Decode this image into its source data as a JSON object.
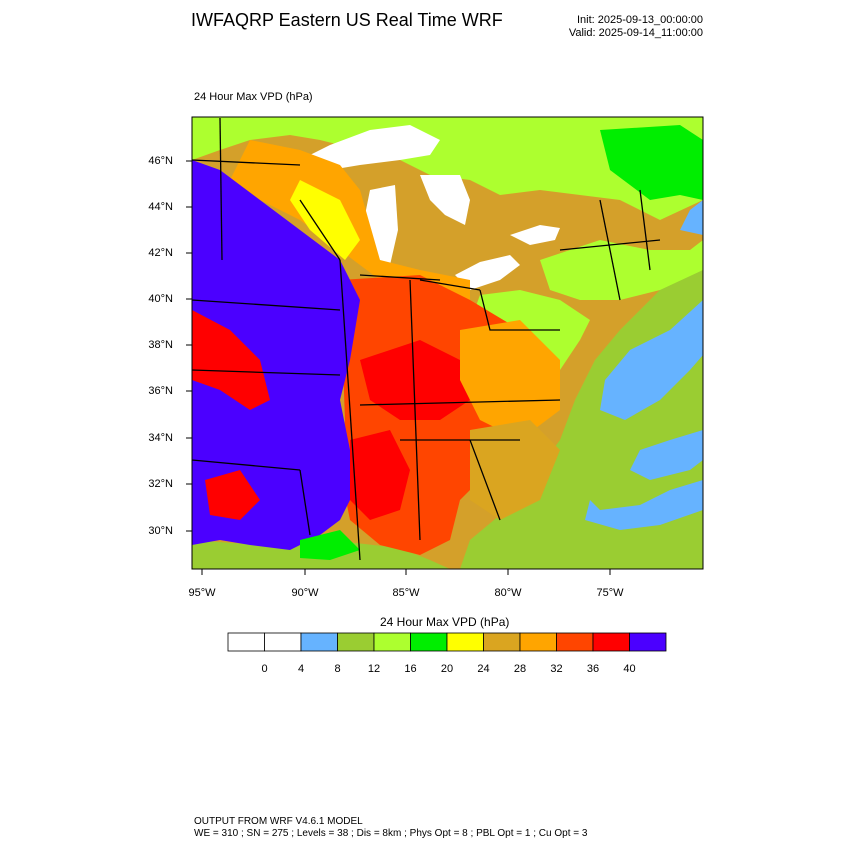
{
  "header": {
    "title": "IWFAQRP Eastern US Real Time WRF",
    "init": "Init: 2025-09-13_00:00:00",
    "valid": "Valid: 2025-09-14_11:00:00"
  },
  "plot": {
    "field_label": "24 Hour Max VPD   (hPa)",
    "lat_labels": [
      "46°N",
      "44°N",
      "42°N",
      "40°N",
      "38°N",
      "36°N",
      "34°N",
      "32°N",
      "30°N"
    ],
    "lon_labels": [
      "95°W",
      "90°W",
      "85°W",
      "80°W",
      "75°W"
    ]
  },
  "colorbar": {
    "title": "24 Hour Max VPD  (hPa)",
    "ticks": [
      "0",
      "4",
      "8",
      "12",
      "16",
      "20",
      "24",
      "28",
      "32",
      "36",
      "40"
    ],
    "colors": [
      "#ffffff",
      "#ffffff",
      "#66b3ff",
      "#9acd32",
      "#adff2f",
      "#00ee00",
      "#ffff00",
      "#daa520",
      "#ffa500",
      "#ff4500",
      "#ff0000",
      "#4b00ff"
    ]
  },
  "footer": {
    "line1": "OUTPUT FROM WRF V4.6.1 MODEL",
    "line2": "WE = 310 ; SN = 275 ; Levels = 38 ; Dis = 8km ; Phys Opt = 8 ; PBL Opt = 1 ; Cu Opt = 3"
  }
}
